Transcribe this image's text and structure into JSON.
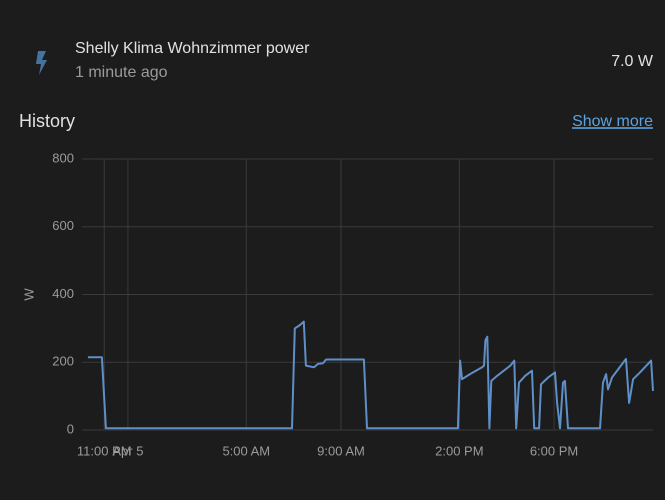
{
  "header": {
    "title": "Shelly Klima Wohnzimmer power",
    "subtitle": "1 minute ago",
    "state": "7.0 W"
  },
  "history": {
    "title": "History",
    "link": "Show more"
  },
  "chart_data": {
    "type": "line",
    "ylabel": "W",
    "x": [
      -1.69,
      -1.1,
      -0.93,
      6.93,
      7.05,
      7.27,
      7.43,
      7.52,
      7.86,
      8.03,
      8.24,
      8.37,
      9.97,
      10.1,
      13.94,
      14.03,
      14.11,
      14.45,
      14.96,
      15.04,
      15.1,
      15.18,
      15.27,
      15.35,
      15.6,
      16.15,
      16.32,
      16.4,
      16.52,
      16.78,
      17.07,
      17.16,
      17.37,
      17.45,
      17.75,
      18.04,
      18.13,
      18.25,
      18.38,
      18.46,
      18.59,
      19.94,
      20.07,
      20.2,
      20.28,
      20.45,
      21.04,
      21.17,
      21.34,
      21.63,
      22.1,
      22.18
    ],
    "series": [
      {
        "color": "#5f8fc7",
        "values": [
          215,
          215,
          5,
          5,
          300,
          310,
          320,
          190,
          185,
          195,
          197,
          208,
          208,
          5,
          5,
          205,
          150,
          165,
          185,
          190,
          265,
          275,
          5,
          145,
          160,
          190,
          205,
          5,
          140,
          160,
          175,
          5,
          5,
          135,
          155,
          170,
          80,
          5,
          140,
          145,
          5,
          5,
          140,
          165,
          120,
          155,
          210,
          80,
          150,
          170,
          205,
          115
        ]
      }
    ],
    "xlim": [
      -1.94,
      22.18
    ],
    "xticks": [
      {
        "value": -1,
        "label": "11:00 PM"
      },
      {
        "value": 0,
        "label": "Apr 5"
      },
      {
        "value": 5,
        "label": "5:00 AM"
      },
      {
        "value": 9,
        "label": "9:00 AM"
      },
      {
        "value": 14,
        "label": "2:00 PM"
      },
      {
        "value": 18,
        "label": "6:00 PM"
      }
    ],
    "ylim": [
      0,
      800
    ],
    "yticks": [
      0,
      200,
      400,
      600,
      800
    ],
    "grid": true
  }
}
